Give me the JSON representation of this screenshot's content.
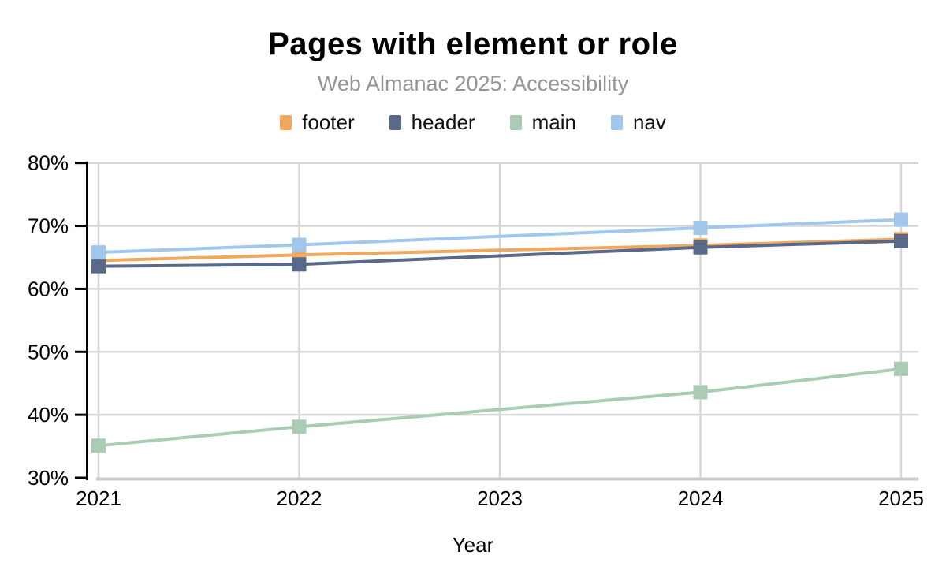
{
  "page": {
    "background": "#FFFFFF"
  },
  "header": {
    "title": "Pages with element or role",
    "subtitle": "Web Almanac 2025: Accessibility"
  },
  "legend": {
    "items": [
      {
        "label": "footer",
        "color": "#F0A75E"
      },
      {
        "label": "header",
        "color": "#59698A"
      },
      {
        "label": "main",
        "color": "#A9CCB3"
      },
      {
        "label": "nav",
        "color": "#A1C8EC"
      }
    ]
  },
  "chart_data": {
    "type": "line",
    "title": "Pages with element or role",
    "subtitle": "Web Almanac 2025: Accessibility",
    "xlabel": "Year",
    "ylabel": "",
    "x": [
      2021,
      2022,
      2024,
      2025
    ],
    "series": [
      {
        "name": "footer",
        "color": "#F0A75E",
        "values": [
          64.5,
          65.4,
          66.9,
          67.9
        ]
      },
      {
        "name": "header",
        "color": "#59698A",
        "values": [
          63.6,
          63.9,
          66.6,
          67.6
        ]
      },
      {
        "name": "main",
        "color": "#A9CCB3",
        "values": [
          35.1,
          38.1,
          43.6,
          47.3
        ]
      },
      {
        "name": "nav",
        "color": "#A1C8EC",
        "values": [
          65.8,
          67.0,
          69.7,
          71.0
        ]
      }
    ],
    "x_ticks": [
      "2021",
      "2022",
      "2023",
      "2024",
      "2025"
    ],
    "y_ticks": [
      "30%",
      "40%",
      "50%",
      "60%",
      "70%",
      "80%"
    ],
    "y_tick_values": [
      30,
      40,
      50,
      60,
      70,
      80
    ],
    "xlim": [
      2021,
      2025
    ],
    "ylim": [
      30,
      80
    ],
    "unit": "%",
    "grid": true,
    "marker": "square",
    "legend_position": "top"
  },
  "colors": {
    "grid": "#D6D6D6",
    "bottom_line": "#CCCCCC",
    "axis": "#000000",
    "subtitle_text": "#949494"
  }
}
